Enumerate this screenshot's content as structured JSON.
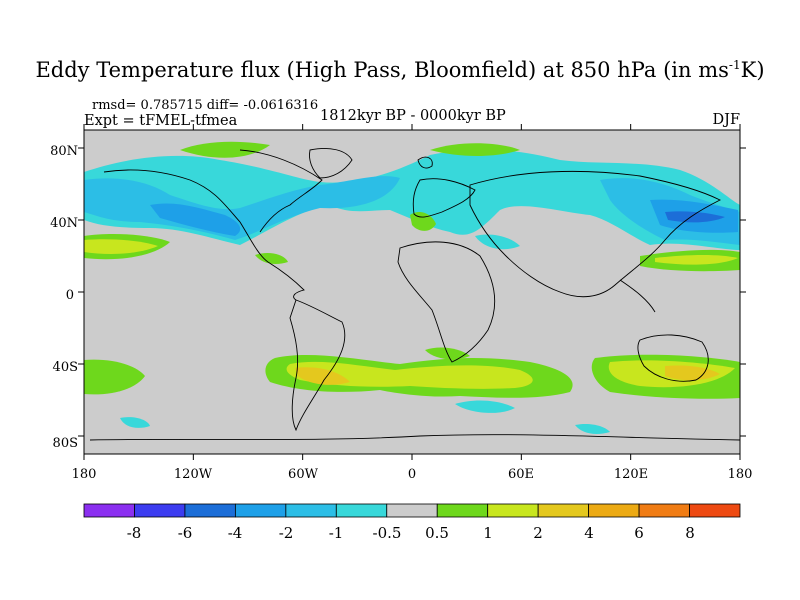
{
  "title": "Eddy Temperature flux (High Pass, Bloomfield) at 850 hPa (in ms",
  "title_sup": "-1",
  "title_end": "K)",
  "stats": "rmsd= 0.785715 diff= -0.0616316",
  "expt": "Expt = tFMEL-tfmea",
  "period": "1812kyr BP - 0000kyr BP",
  "season": "DJF",
  "map": {
    "projection": "cylindrical-equidistant",
    "lon_range": [
      -180,
      180
    ],
    "lat_range": [
      -90,
      90
    ],
    "background_color": "#cccccc",
    "coastline_color": "#000000",
    "lat_ticks": [
      "80N",
      "40N",
      "0",
      "40S",
      "80S"
    ],
    "lon_ticks": [
      "180",
      "120W",
      "60W",
      "0",
      "60E",
      "120E",
      "180"
    ]
  },
  "colorbar": {
    "colors": [
      "#8b2ff0",
      "#3c3cf0",
      "#1c6ed8",
      "#1ea0e8",
      "#2cbee6",
      "#38d8da",
      "#cccccc",
      "#6ed81c",
      "#c8e61e",
      "#e4c81e",
      "#ecaa14",
      "#f07c14",
      "#ee4a12"
    ],
    "labels": [
      "-8",
      "-6",
      "-4",
      "-2",
      "-1",
      "-0.5",
      "0.5",
      "1",
      "2",
      "4",
      "6",
      "8"
    ]
  }
}
